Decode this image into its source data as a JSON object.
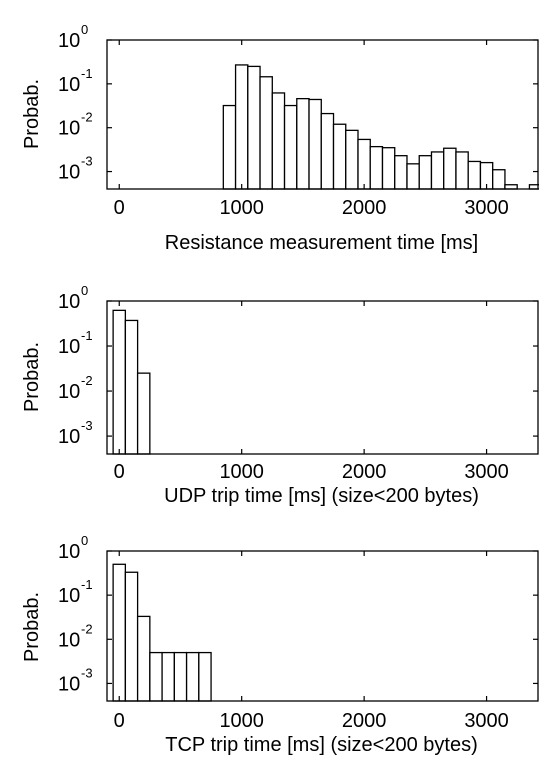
{
  "chart_data": [
    {
      "type": "bar",
      "ylabel": "Probab.",
      "xlabel": "Resistance measurement time [ms]",
      "x_ticks": [
        "0",
        "1000",
        "2000",
        "3000"
      ],
      "y_ticks": [
        {
          "base": "10",
          "exp": "0"
        },
        {
          "base": "10",
          "exp": "-1"
        },
        {
          "base": "10",
          "exp": "-2"
        },
        {
          "base": "10",
          "exp": "-3"
        }
      ],
      "xlim": [
        -100,
        3420
      ],
      "ylim": [
        0.0004,
        1
      ],
      "y_scale": "log",
      "bin_width": 100,
      "x": [
        900,
        1000,
        1100,
        1200,
        1300,
        1400,
        1500,
        1600,
        1700,
        1800,
        1900,
        2000,
        2100,
        2200,
        2300,
        2400,
        2500,
        2600,
        2700,
        2800,
        2900,
        3000,
        3100,
        3200,
        3300,
        3400
      ],
      "values": [
        0.032,
        0.27,
        0.25,
        0.145,
        0.062,
        0.032,
        0.046,
        0.044,
        0.021,
        0.012,
        0.0087,
        0.0054,
        0.0037,
        0.0035,
        0.0023,
        0.0015,
        0.0023,
        0.0028,
        0.0034,
        0.0028,
        0.0017,
        0.0016,
        0.0011,
        0.0005,
        0.0004,
        0.0005
      ]
    },
    {
      "type": "bar",
      "ylabel": "Probab.",
      "xlabel": "UDP trip time [ms] (size<200 bytes)",
      "x_ticks": [
        "0",
        "1000",
        "2000",
        "3000"
      ],
      "y_ticks": [
        {
          "base": "10",
          "exp": "0"
        },
        {
          "base": "10",
          "exp": "-1"
        },
        {
          "base": "10",
          "exp": "-2"
        },
        {
          "base": "10",
          "exp": "-3"
        }
      ],
      "xlim": [
        -100,
        3420
      ],
      "ylim": [
        0.0004,
        1
      ],
      "y_scale": "log",
      "bin_width": 100,
      "x": [
        0,
        100,
        200
      ],
      "values": [
        0.62,
        0.37,
        0.025
      ]
    },
    {
      "type": "bar",
      "ylabel": "Probab.",
      "xlabel": "TCP trip time [ms] (size<200 bytes)",
      "x_ticks": [
        "0",
        "1000",
        "2000",
        "3000"
      ],
      "y_ticks": [
        {
          "base": "10",
          "exp": "0"
        },
        {
          "base": "10",
          "exp": "-1"
        },
        {
          "base": "10",
          "exp": "-2"
        },
        {
          "base": "10",
          "exp": "-3"
        }
      ],
      "xlim": [
        -100,
        3420
      ],
      "ylim": [
        0.0004,
        1
      ],
      "y_scale": "log",
      "bin_width": 100,
      "x": [
        0,
        100,
        200,
        300,
        400,
        500,
        600,
        700
      ],
      "values": [
        0.5,
        0.33,
        0.033,
        0.005,
        0.005,
        0.005,
        0.005,
        0.005
      ]
    }
  ]
}
